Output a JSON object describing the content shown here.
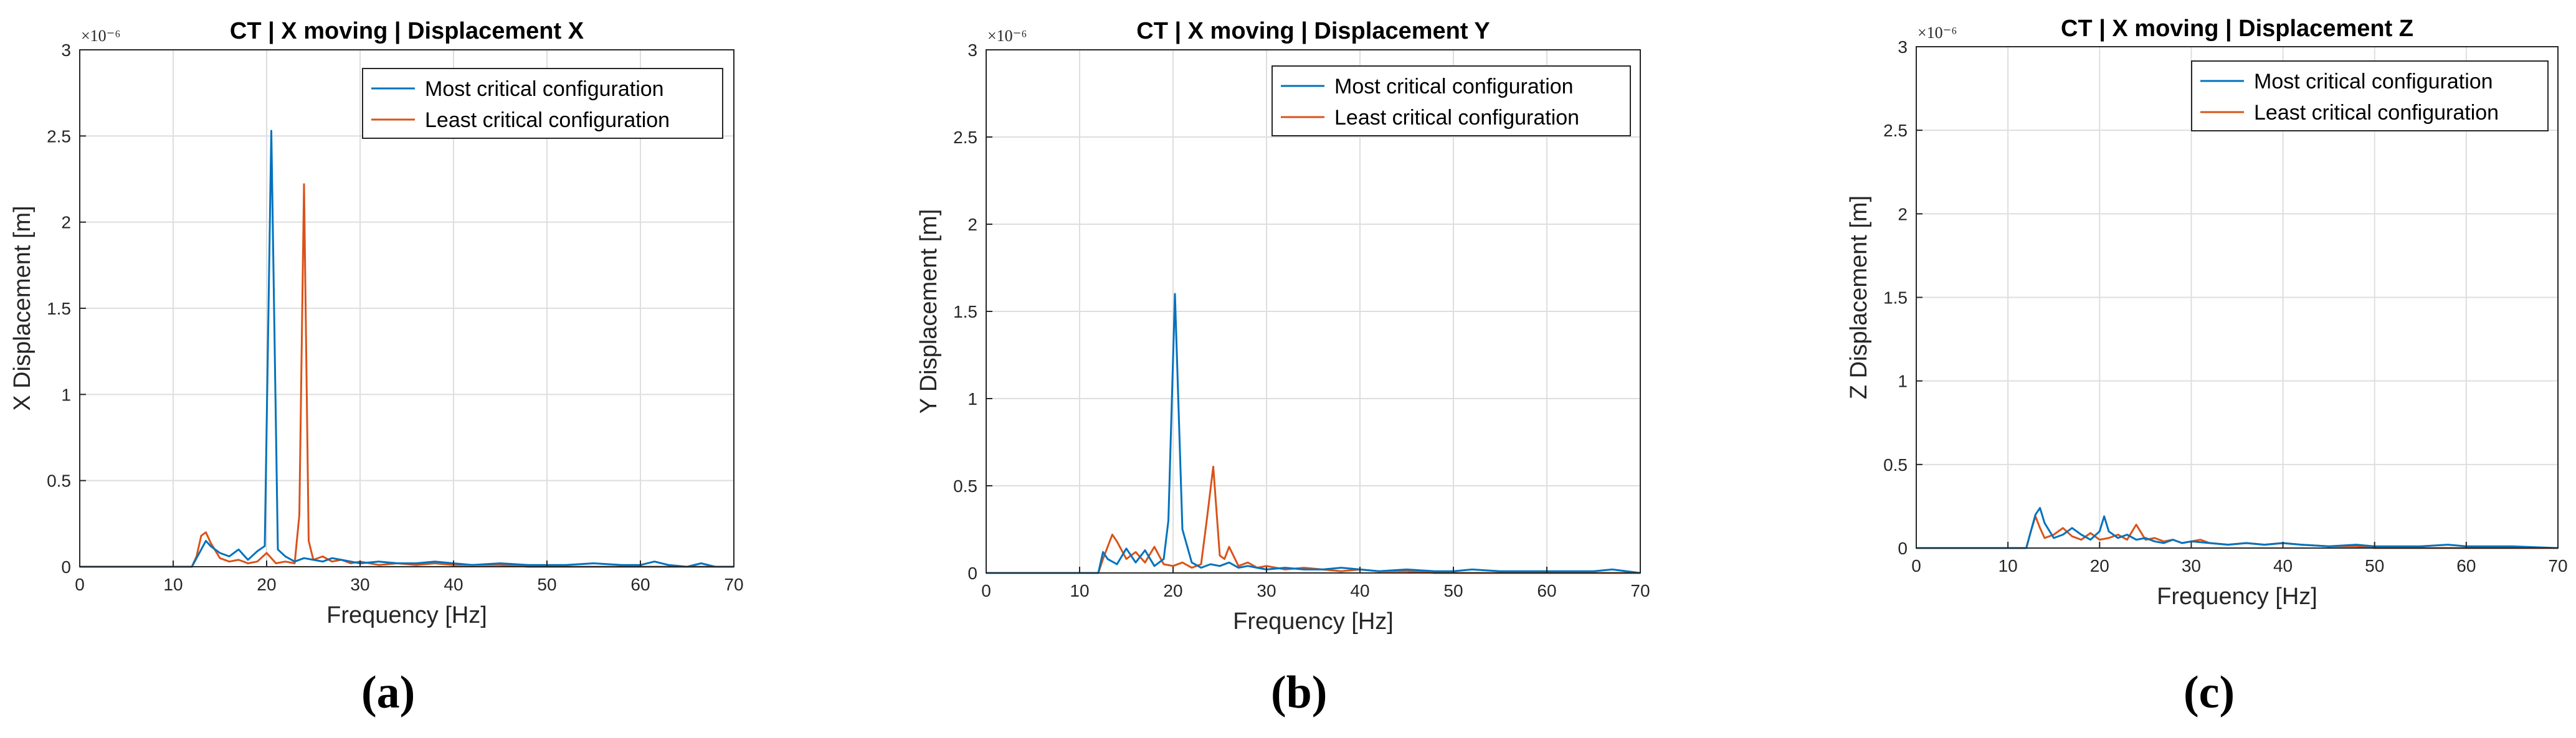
{
  "figure": {
    "panel_labels": [
      "(a)",
      "(b)",
      "(c)"
    ]
  },
  "chart_data": [
    {
      "type": "line",
      "title": "CT | X moving | Displacement X",
      "xlabel": "Frequency [Hz]",
      "ylabel": "X Displacement [m]",
      "exponent_label": "×10⁻⁶",
      "xlim": [
        0,
        70
      ],
      "ylim": [
        0,
        3
      ],
      "xticks": [
        "0",
        "10",
        "20",
        "30",
        "40",
        "50",
        "60",
        "70"
      ],
      "yticks": [
        "0",
        "0.5",
        "1",
        "1.5",
        "2",
        "2.5",
        "3"
      ],
      "grid": true,
      "legend_position": "top-right",
      "colors": {
        "most": "#0072BD",
        "least": "#D95319"
      },
      "series": [
        {
          "name": "Most critical configuration",
          "x": [
            0,
            12,
            12.5,
            13,
            13.5,
            14,
            15,
            16,
            17,
            18,
            19,
            19.8,
            20.5,
            21.2,
            22,
            23,
            24,
            25,
            26,
            27,
            28,
            29,
            30,
            32,
            34,
            36,
            38,
            40,
            42,
            45,
            48,
            50,
            52,
            55,
            58,
            60,
            61.5,
            63,
            65,
            66.5,
            68,
            70
          ],
          "y": [
            0,
            0,
            0.05,
            0.1,
            0.15,
            0.12,
            0.08,
            0.06,
            0.1,
            0.04,
            0.09,
            0.12,
            2.53,
            0.1,
            0.06,
            0.03,
            0.05,
            0.04,
            0.03,
            0.05,
            0.04,
            0.03,
            0.02,
            0.03,
            0.02,
            0.02,
            0.03,
            0.02,
            0.01,
            0.02,
            0.01,
            0.01,
            0.01,
            0.02,
            0.01,
            0.01,
            0.03,
            0.01,
            0,
            0.02,
            0,
            0
          ]
        },
        {
          "name": "Least critical configuration",
          "x": [
            0,
            12,
            12.5,
            13,
            13.5,
            14,
            15,
            16,
            17,
            18,
            19,
            20,
            21,
            22,
            23,
            23.5,
            24,
            24.5,
            25,
            26,
            27,
            28,
            29,
            30,
            32,
            34,
            36,
            38,
            40,
            42,
            45,
            48,
            50,
            55,
            60,
            65,
            70
          ],
          "y": [
            0,
            0,
            0.06,
            0.18,
            0.2,
            0.14,
            0.05,
            0.03,
            0.04,
            0.02,
            0.03,
            0.08,
            0.02,
            0.03,
            0.02,
            0.3,
            2.22,
            0.15,
            0.04,
            0.06,
            0.03,
            0.04,
            0.02,
            0.03,
            0.01,
            0.02,
            0.01,
            0.02,
            0.01,
            0.01,
            0.01,
            0,
            0,
            0,
            0,
            0,
            0
          ]
        }
      ]
    },
    {
      "type": "line",
      "title": "CT | X moving | Displacement Y",
      "xlabel": "Frequency [Hz]",
      "ylabel": "Y Displacement [m]",
      "exponent_label": "×10⁻⁶",
      "xlim": [
        0,
        70
      ],
      "ylim": [
        0,
        3
      ],
      "xticks": [
        "0",
        "10",
        "20",
        "30",
        "40",
        "50",
        "60",
        "70"
      ],
      "yticks": [
        "0",
        "0.5",
        "1",
        "1.5",
        "2",
        "2.5",
        "3"
      ],
      "grid": true,
      "legend_position": "top-right",
      "colors": {
        "most": "#0072BD",
        "least": "#D95319"
      },
      "series": [
        {
          "name": "Most critical configuration",
          "x": [
            0,
            12,
            12.5,
            13,
            14,
            15,
            16,
            17,
            18,
            19,
            19.5,
            20.2,
            21,
            22,
            23,
            24,
            25,
            26,
            27,
            28,
            29,
            30,
            32,
            34,
            36,
            38,
            40,
            42,
            45,
            48,
            50,
            52,
            55,
            58,
            60,
            65,
            67,
            70
          ],
          "y": [
            0,
            0,
            0.12,
            0.08,
            0.05,
            0.14,
            0.06,
            0.13,
            0.04,
            0.08,
            0.3,
            1.6,
            0.25,
            0.06,
            0.03,
            0.05,
            0.04,
            0.06,
            0.03,
            0.04,
            0.03,
            0.02,
            0.03,
            0.02,
            0.02,
            0.03,
            0.02,
            0.01,
            0.02,
            0.01,
            0.01,
            0.02,
            0.01,
            0.01,
            0.01,
            0.01,
            0.02,
            0
          ]
        },
        {
          "name": "Least critical configuration",
          "x": [
            0,
            12,
            12.5,
            13,
            13.5,
            14,
            15,
            16,
            17,
            18,
            19,
            20,
            21,
            22,
            23,
            23.6,
            24.3,
            25,
            25.5,
            26,
            27,
            28,
            29,
            30,
            32,
            34,
            36,
            38,
            40,
            42,
            45,
            48,
            50,
            55,
            60,
            65,
            70
          ],
          "y": [
            0,
            0,
            0.08,
            0.15,
            0.22,
            0.18,
            0.08,
            0.12,
            0.06,
            0.15,
            0.05,
            0.04,
            0.06,
            0.03,
            0.05,
            0.3,
            0.61,
            0.1,
            0.08,
            0.15,
            0.04,
            0.06,
            0.03,
            0.04,
            0.02,
            0.03,
            0.02,
            0.01,
            0.02,
            0.01,
            0.01,
            0,
            0,
            0,
            0,
            0,
            0
          ]
        }
      ]
    },
    {
      "type": "line",
      "title": "CT | X moving | Displacement Z",
      "xlabel": "Frequency [Hz]",
      "ylabel": "Z Displacement [m]",
      "exponent_label": "×10⁻⁶",
      "xlim": [
        0,
        70
      ],
      "ylim": [
        0,
        3
      ],
      "xticks": [
        "0",
        "10",
        "20",
        "30",
        "40",
        "50",
        "60",
        "70"
      ],
      "yticks": [
        "0",
        "0.5",
        "1",
        "1.5",
        "2",
        "2.5",
        "3"
      ],
      "grid": true,
      "legend_position": "top-right",
      "colors": {
        "most": "#0072BD",
        "least": "#D95319"
      },
      "series": [
        {
          "name": "Most critical configuration",
          "x": [
            0,
            12,
            12.5,
            13,
            13.5,
            14,
            15,
            16,
            17,
            18,
            19,
            20,
            20.5,
            21,
            22,
            23,
            24,
            25,
            26,
            27,
            28,
            29,
            30,
            32,
            34,
            36,
            38,
            40,
            42,
            45,
            48,
            50,
            52,
            55,
            58,
            60,
            65,
            70
          ],
          "y": [
            0,
            0,
            0.1,
            0.2,
            0.24,
            0.15,
            0.06,
            0.08,
            0.12,
            0.08,
            0.05,
            0.1,
            0.19,
            0.1,
            0.06,
            0.08,
            0.05,
            0.06,
            0.04,
            0.03,
            0.05,
            0.03,
            0.04,
            0.03,
            0.02,
            0.03,
            0.02,
            0.03,
            0.02,
            0.01,
            0.02,
            0.01,
            0.01,
            0.01,
            0.02,
            0.01,
            0.01,
            0
          ]
        },
        {
          "name": "Least critical configuration",
          "x": [
            0,
            12,
            12.5,
            13,
            13.5,
            14,
            15,
            16,
            17,
            18,
            19,
            20,
            21,
            22,
            23,
            24,
            25,
            26,
            27,
            28,
            29,
            30,
            31,
            32,
            34,
            36,
            38,
            40,
            42,
            45,
            48,
            50,
            55,
            60,
            65,
            70
          ],
          "y": [
            0,
            0,
            0.1,
            0.19,
            0.12,
            0.06,
            0.08,
            0.12,
            0.07,
            0.05,
            0.09,
            0.05,
            0.06,
            0.08,
            0.05,
            0.14,
            0.05,
            0.06,
            0.04,
            0.05,
            0.03,
            0.04,
            0.05,
            0.03,
            0.02,
            0.03,
            0.02,
            0.03,
            0.02,
            0.01,
            0.01,
            0,
            0,
            0,
            0,
            0
          ]
        }
      ]
    }
  ]
}
